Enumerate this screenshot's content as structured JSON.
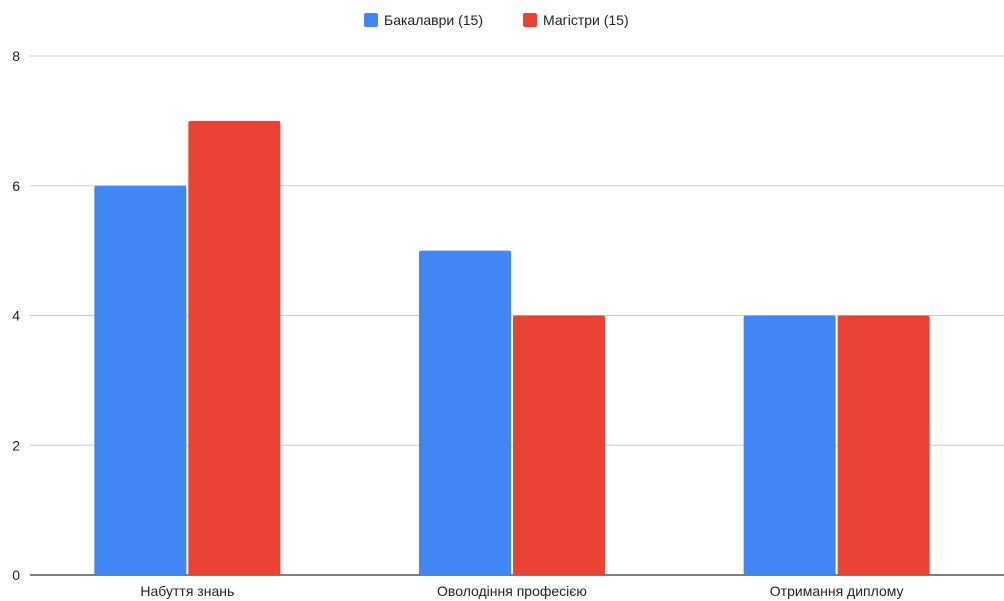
{
  "chart_data": {
    "type": "bar",
    "categories": [
      "Набуття знань",
      "Оволодіння професією",
      "Отримання диплому"
    ],
    "series": [
      {
        "name": "Бакалаври (15)",
        "color": "#4285f4",
        "values": [
          6,
          5,
          4
        ]
      },
      {
        "name": "Магістри (15)",
        "color": "#ea4335",
        "values": [
          7,
          4,
          4
        ]
      }
    ],
    "y_ticks": [
      "0",
      "2",
      "4",
      "6",
      "8"
    ],
    "ylim": [
      0,
      8
    ],
    "grid": true,
    "legend_position": "top-center",
    "title": "",
    "xlabel": "",
    "ylabel": ""
  }
}
